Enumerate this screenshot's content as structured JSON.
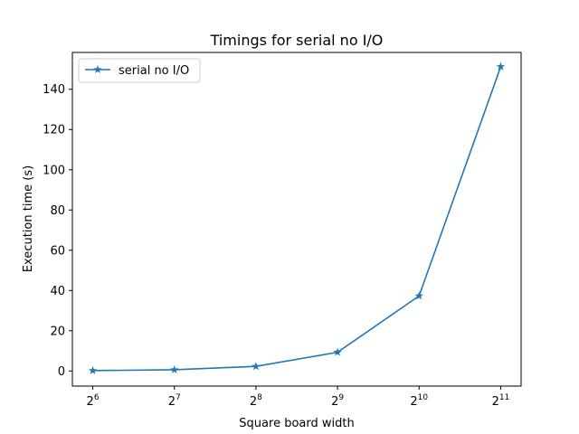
{
  "chart_data": {
    "type": "line",
    "title": "Timings for serial no I/O",
    "xlabel": "Square board width",
    "ylabel": "Execution time (s)",
    "x_scale": "log2",
    "x": [
      64,
      128,
      256,
      512,
      1024,
      2048
    ],
    "x_tick_labels": [
      {
        "base": "2",
        "exp": "6"
      },
      {
        "base": "2",
        "exp": "7"
      },
      {
        "base": "2",
        "exp": "8"
      },
      {
        "base": "2",
        "exp": "9"
      },
      {
        "base": "2",
        "exp": "10"
      },
      {
        "base": "2",
        "exp": "11"
      }
    ],
    "y_ticks": [
      0,
      20,
      40,
      60,
      80,
      100,
      120,
      140
    ],
    "ylim": [
      -7.5,
      158.3
    ],
    "grid": false,
    "legend_position": "upper-left",
    "series": [
      {
        "name": "serial no I/O",
        "color": "#1f77b4",
        "marker": "star",
        "values": [
          0.2,
          0.6,
          2.3,
          9.3,
          37.3,
          151.2
        ]
      }
    ]
  }
}
